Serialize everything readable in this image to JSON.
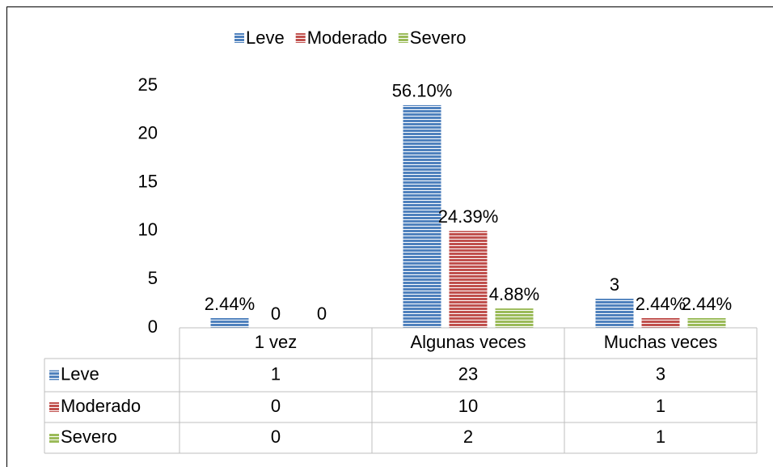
{
  "chart_data": {
    "type": "bar",
    "categories": [
      "1 vez",
      "Algunas veces",
      "Muchas veces"
    ],
    "series": [
      {
        "name": "Leve",
        "color": "#4f81bd",
        "values": [
          1,
          23,
          3
        ],
        "value_labels": [
          "2.44%",
          "56.10%",
          "3"
        ]
      },
      {
        "name": "Moderado",
        "color": "#c0504d",
        "values": [
          0,
          10,
          1
        ],
        "value_labels": [
          "0",
          "24.39%",
          "2.44%"
        ]
      },
      {
        "name": "Severo",
        "color": "#9bbb59",
        "values": [
          0,
          2,
          1
        ],
        "value_labels": [
          "0",
          "4.88%",
          "2.44%"
        ]
      }
    ],
    "ylim": [
      0,
      25
    ],
    "yticks": [
      0,
      5,
      10,
      15,
      20,
      25
    ],
    "grid": false,
    "legend": "top",
    "data_table": true
  }
}
